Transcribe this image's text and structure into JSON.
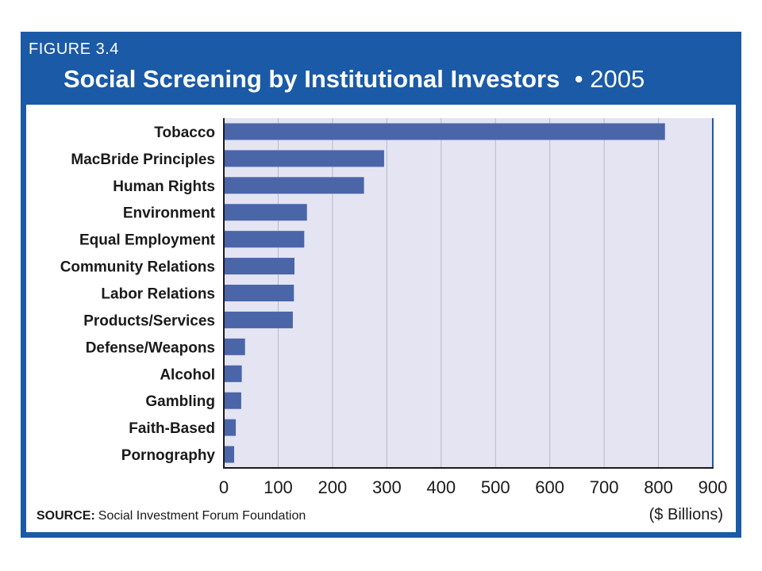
{
  "header": {
    "figure_label": "FIGURE 3.4",
    "title": "Social Screening by Institutional Investors",
    "year_text": "• 2005"
  },
  "footer": {
    "source_label": "SOURCE:",
    "source_text": "Social Investment Forum Foundation",
    "unit_label": "($ Billions)"
  },
  "colors": {
    "frame": "#1b5aa6",
    "plot_background": "#e4e4f2",
    "bar": "#4a66a8",
    "grid": "#b8b8cc"
  },
  "chart_data": {
    "type": "bar",
    "orientation": "horizontal",
    "title": "Social Screening by Institutional Investors",
    "xlabel": "($ Billions)",
    "ylabel": "",
    "xlim": [
      0,
      900
    ],
    "xticks": [
      0,
      100,
      200,
      300,
      400,
      500,
      600,
      700,
      800,
      900
    ],
    "grid": true,
    "categories": [
      "Tobacco",
      "MacBride Principles",
      "Human Rights",
      "Environment",
      "Equal Employment",
      "Community Relations",
      "Labor Relations",
      "Products/Services",
      "Defense/Weapons",
      "Alcohol",
      "Gambling",
      "Faith-Based",
      "Pornography"
    ],
    "values": [
      812,
      295,
      258,
      153,
      148,
      130,
      129,
      127,
      39,
      33,
      32,
      22,
      19
    ]
  }
}
